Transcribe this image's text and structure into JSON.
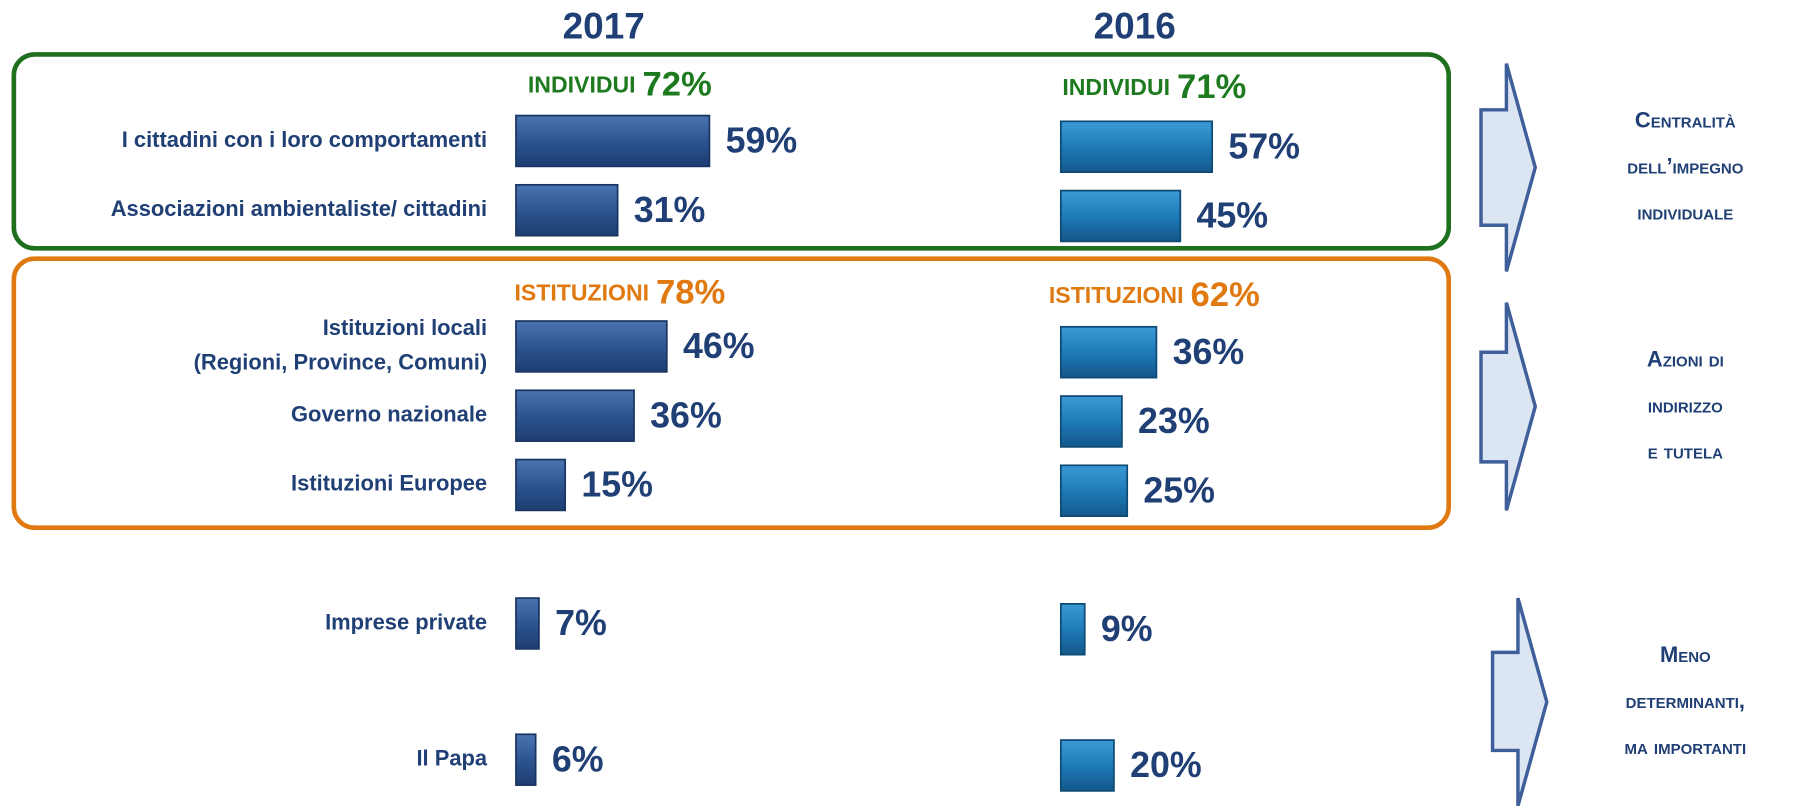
{
  "chart_data": {
    "type": "bar",
    "categories": [
      "I cittadini con i loro comportamenti",
      "Associazioni ambientaliste/ cittadini",
      "Istituzioni locali\n(Regioni, Province, Comuni)",
      "Governo nazionale",
      "Istituzioni Europee",
      "Imprese private",
      "Il Papa"
    ],
    "series": [
      {
        "name": "2017",
        "color": "#2d5591",
        "values": [
          59,
          31,
          46,
          36,
          15,
          7,
          6
        ],
        "value_labels": [
          "59%",
          "31%",
          "46%",
          "36%",
          "15%",
          "7%",
          "6%"
        ]
      },
      {
        "name": "2016",
        "color": "#1e7bb8",
        "values": [
          57,
          45,
          36,
          23,
          25,
          9,
          20
        ],
        "value_labels": [
          "57%",
          "45%",
          "36%",
          "23%",
          "25%",
          "9%",
          "20%"
        ]
      }
    ],
    "xlim": [
      0,
      100
    ],
    "groups": [
      {
        "name": "INDIVIDUI",
        "color": "#1e7a1e",
        "labels": [
          "72%",
          "71%"
        ]
      },
      {
        "name": "ISTITUZIONI",
        "color": "#e07a10",
        "labels": [
          "78%",
          "62%"
        ]
      }
    ],
    "notes": [
      "Centralità dell’impegno individuale",
      "Azioni di indirizzo e tutela",
      "Meno determinanti, ma importanti"
    ]
  }
}
